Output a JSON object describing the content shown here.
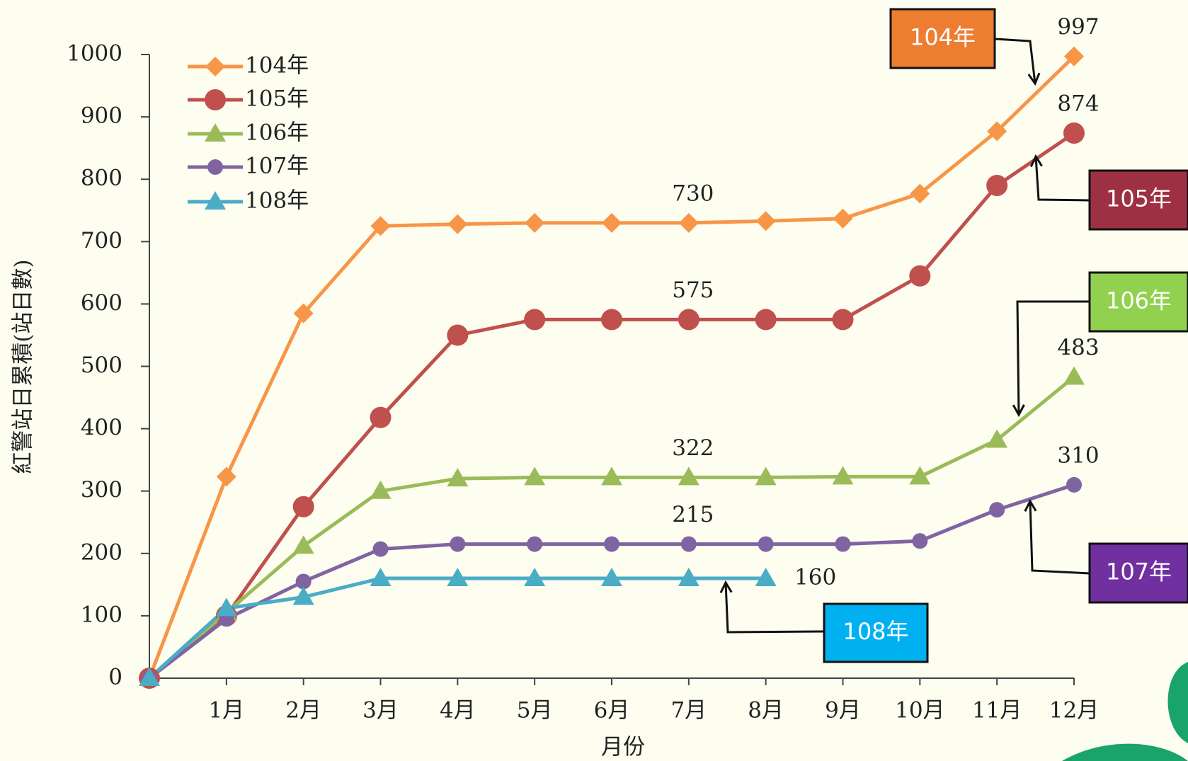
{
  "chart_data": {
    "type": "line",
    "x_label": "月份",
    "y_label": "紅警站日累積(站日數)",
    "categories": [
      null,
      "1月",
      "2月",
      "3月",
      "4月",
      "5月",
      "6月",
      "7月",
      "8月",
      "9月",
      "10月",
      "11月",
      "12月"
    ],
    "series": [
      {
        "name": "104年",
        "color": "#f79646",
        "marker": "diamond",
        "values": [
          0,
          323,
          585,
          725,
          728,
          730,
          730,
          730,
          733,
          737,
          777,
          877,
          997
        ]
      },
      {
        "name": "105年",
        "color": "#c0504d",
        "marker": "circle",
        "values": [
          0,
          100,
          275,
          418,
          550,
          575,
          575,
          575,
          575,
          575,
          645,
          790,
          874
        ]
      },
      {
        "name": "106年",
        "color": "#9bbb59",
        "marker": "triangle",
        "values": [
          0,
          105,
          212,
          300,
          320,
          322,
          322,
          322,
          322,
          323,
          323,
          382,
          483
        ]
      },
      {
        "name": "107年",
        "color": "#8064a2",
        "marker": "small-circle",
        "values": [
          0,
          95,
          155,
          207,
          215,
          215,
          215,
          215,
          215,
          215,
          220,
          270,
          310
        ]
      },
      {
        "name": "108年",
        "color": "#4bacc6",
        "marker": "triangle",
        "values": [
          0,
          112,
          130,
          160,
          160,
          160,
          160,
          160,
          160,
          null,
          null,
          null,
          null
        ]
      }
    ],
    "ylim": [
      0,
      1000
    ],
    "yticks": [
      0,
      100,
      200,
      300,
      400,
      500,
      600,
      700,
      800,
      900,
      1000
    ],
    "legend": "top-left",
    "annotations": [
      {
        "text": "104年",
        "color": "#ed7d31"
      },
      {
        "text": "105年",
        "color": "#9e3043"
      },
      {
        "text": "106年",
        "color": "#92d050"
      },
      {
        "text": "107年",
        "color": "#7030a0"
      },
      {
        "text": "108年",
        "color": "#00b0f0"
      }
    ]
  }
}
